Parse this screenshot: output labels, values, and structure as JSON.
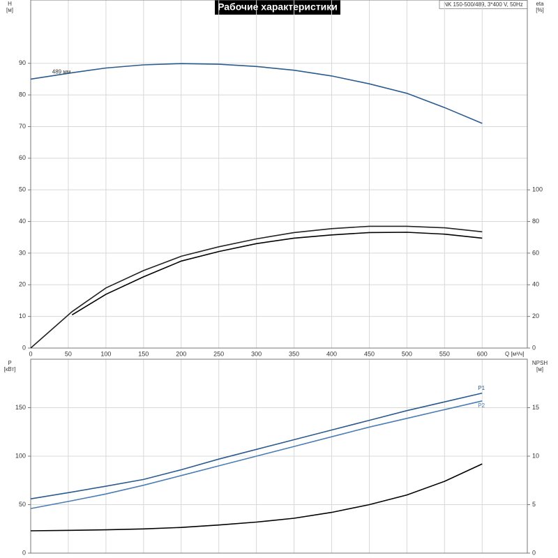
{
  "chart_data": [
    {
      "type": "line",
      "title": "Рабочие характеристики",
      "subtitle": "NK 150-500/489, 3*400 V, 50Hz",
      "ylabel": "H",
      "ylabel_unit": "[м]",
      "y2label": "eta",
      "y2label_unit": "[%]",
      "xlabel": "Q [м³/ч]",
      "x": [
        0,
        55,
        100,
        150,
        200,
        250,
        300,
        350,
        400,
        450,
        500,
        550,
        600
      ],
      "xlim": [
        0,
        660
      ],
      "xticks": [
        0,
        50,
        100,
        150,
        200,
        250,
        300,
        350,
        400,
        450,
        500,
        550,
        600
      ],
      "ylim": [
        0,
        110
      ],
      "yticks": [
        0,
        10,
        20,
        30,
        40,
        50,
        60,
        70,
        80,
        90
      ],
      "y2lim": [
        0,
        220
      ],
      "y2ticks": [
        0,
        20,
        40,
        60,
        80,
        100
      ],
      "grid": true,
      "series": [
        {
          "name": "489 мм",
          "color": "#2b5b8e",
          "values": [
            85,
            87,
            88.5,
            89.5,
            89.9,
            89.7,
            89,
            87.8,
            86,
            83.5,
            80.5,
            76,
            71
          ]
        },
        {
          "color": "#222222",
          "axis": "y2",
          "values": [
            0,
            23,
            38,
            49,
            58,
            64,
            69,
            73,
            75.5,
            77,
            77,
            76,
            73.5
          ]
        },
        {
          "color": "#000000",
          "axis": "y2",
          "values": [
            null,
            21,
            34,
            45,
            55,
            61,
            66,
            69.5,
            71.5,
            73,
            73.2,
            72,
            69.5
          ]
        }
      ]
    },
    {
      "type": "line",
      "ylabel": "P",
      "ylabel_unit": "[кВт]",
      "y2label": "NPSH",
      "y2label_unit": "[м]",
      "x": [
        0,
        55,
        100,
        150,
        200,
        250,
        300,
        350,
        400,
        450,
        500,
        550,
        600
      ],
      "xlim": [
        0,
        660
      ],
      "ylim": [
        0,
        200
      ],
      "yticks": [
        0,
        50,
        100,
        150
      ],
      "y2lim": [
        0,
        20
      ],
      "y2ticks": [
        0,
        5,
        10,
        15
      ],
      "grid": true,
      "series": [
        {
          "name": "P1",
          "color": "#2b5b8e",
          "values": [
            56,
            63,
            69,
            76,
            86,
            97,
            107,
            117,
            127,
            137,
            147,
            156,
            165
          ]
        },
        {
          "name": "P2",
          "color": "#4a7db3",
          "values": [
            46,
            54,
            61,
            70,
            80,
            90,
            100,
            110,
            120,
            130,
            139,
            148,
            157
          ]
        },
        {
          "color": "#000000",
          "axis": "y2",
          "values": [
            2.3,
            2.35,
            2.4,
            2.5,
            2.65,
            2.9,
            3.2,
            3.6,
            4.2,
            5.0,
            6.0,
            7.4,
            9.2
          ]
        }
      ]
    }
  ]
}
